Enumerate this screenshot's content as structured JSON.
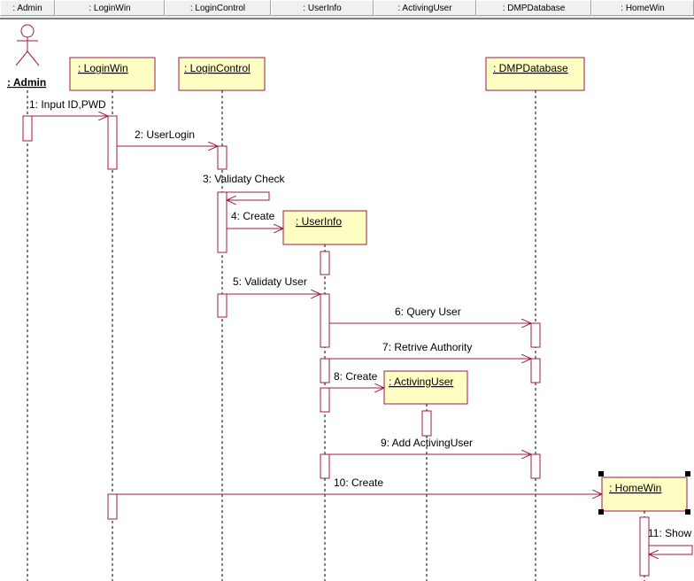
{
  "header": [
    "  : Admin",
    " : LoginWin",
    " : LoginControl",
    " : UserInfo",
    " : ActivingUser",
    " : DMPDatabase",
    " : HomeWin"
  ],
  "objects": {
    "admin": ": Admin",
    "loginwin": " : LoginWin",
    "logincontrol": " : LoginControl",
    "userinfo": " : UserInfo",
    "activinguser": " : ActivingUser",
    "dmpdatabase": " : DMPDatabase",
    "homewin": " : HomeWin"
  },
  "messages": [
    "1: Input ID,PWD",
    "2: UserLogin",
    "3: Validaty Check",
    "4: Create",
    "5: Validaty User",
    "6: Query User",
    "7: Retrive Authority",
    "8: Create",
    "9: Add ActivingUser",
    "10: Create",
    "11: Show"
  ],
  "colors": {
    "line": "#9b1b45",
    "box_fill": "#ffffc4",
    "selection_handle": "#000000"
  }
}
